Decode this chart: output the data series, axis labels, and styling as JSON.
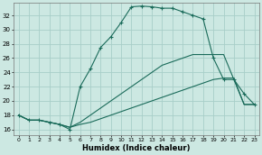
{
  "xlabel": "Humidex (Indice chaleur)",
  "bg_color": "#cce8e2",
  "grid_color": "#a8cec8",
  "line_color": "#1a6b5a",
  "xlim": [
    -0.5,
    23.5
  ],
  "ylim": [
    15.2,
    33.8
  ],
  "yticks": [
    16,
    18,
    20,
    22,
    24,
    26,
    28,
    30,
    32
  ],
  "xticks": [
    0,
    1,
    2,
    3,
    4,
    5,
    6,
    7,
    8,
    9,
    10,
    11,
    12,
    13,
    14,
    15,
    16,
    17,
    18,
    19,
    20,
    21,
    22,
    23
  ],
  "line1_x": [
    0,
    1,
    2,
    3,
    4,
    5,
    6,
    7,
    8,
    9,
    10,
    11,
    12,
    13,
    14,
    15,
    16,
    17,
    18,
    19,
    20,
    21,
    22,
    23
  ],
  "line1_y": [
    18,
    17.3,
    17.3,
    17.0,
    16.7,
    16.3,
    16.7,
    17.0,
    17.5,
    18.0,
    18.5,
    19.0,
    19.5,
    20.0,
    20.5,
    21.0,
    21.5,
    22.0,
    22.5,
    23.0,
    23.2,
    23.2,
    19.5,
    19.5
  ],
  "line2_x": [
    0,
    1,
    2,
    3,
    4,
    5,
    6,
    7,
    8,
    9,
    10,
    11,
    12,
    13,
    14,
    15,
    16,
    17,
    18,
    19,
    20,
    21,
    22,
    23
  ],
  "line2_y": [
    18,
    17.3,
    17.3,
    17.0,
    16.7,
    16.3,
    17.0,
    18.0,
    19.0,
    20.0,
    21.0,
    22.0,
    23.0,
    24.0,
    25.0,
    25.5,
    26.0,
    26.5,
    26.5,
    26.5,
    26.5,
    23.0,
    19.5,
    19.5
  ],
  "line3_x": [
    0,
    1,
    2,
    3,
    4,
    5,
    6,
    7,
    8,
    9,
    10,
    11,
    12,
    13,
    14,
    15,
    16,
    17,
    18,
    19,
    20,
    21,
    22,
    23
  ],
  "line3_y": [
    18,
    17.3,
    17.3,
    17.0,
    16.7,
    16.0,
    22.0,
    24.5,
    27.5,
    29.0,
    31.0,
    33.2,
    33.3,
    33.2,
    33.0,
    33.0,
    32.5,
    32.0,
    31.5,
    26.0,
    23.0,
    23.0,
    21.0,
    19.5
  ]
}
